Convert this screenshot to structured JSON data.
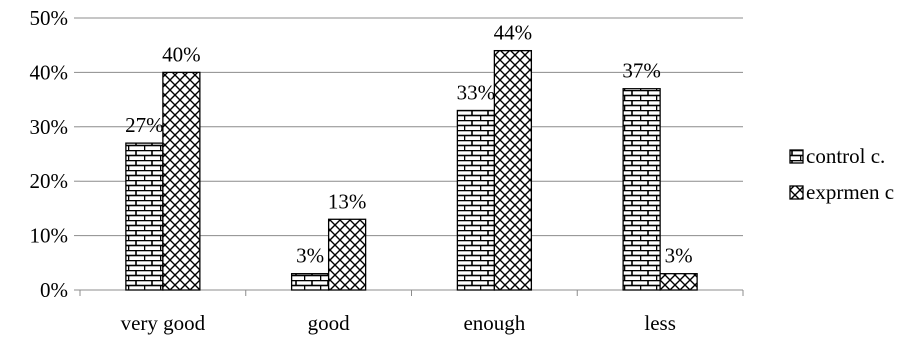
{
  "chart_data": {
    "type": "bar",
    "categories": [
      "very good",
      "good",
      "enough",
      "less"
    ],
    "series": [
      {
        "name": "control c.",
        "values": [
          27,
          3,
          33,
          37
        ],
        "pattern": "brick"
      },
      {
        "name": "exprmen c",
        "values": [
          40,
          13,
          44,
          3
        ],
        "pattern": "crosshatch"
      }
    ],
    "data_labels": [
      [
        "27%",
        "3%",
        "33%",
        "37%"
      ],
      [
        "40%",
        "13%",
        "44%",
        "3%"
      ]
    ],
    "y_ticks": [
      "0%",
      "10%",
      "20%",
      "30%",
      "40%",
      "50%"
    ],
    "ylim": [
      0,
      50
    ],
    "grid": true,
    "legend_position": "right",
    "title": "",
    "xlabel": "",
    "ylabel": ""
  }
}
